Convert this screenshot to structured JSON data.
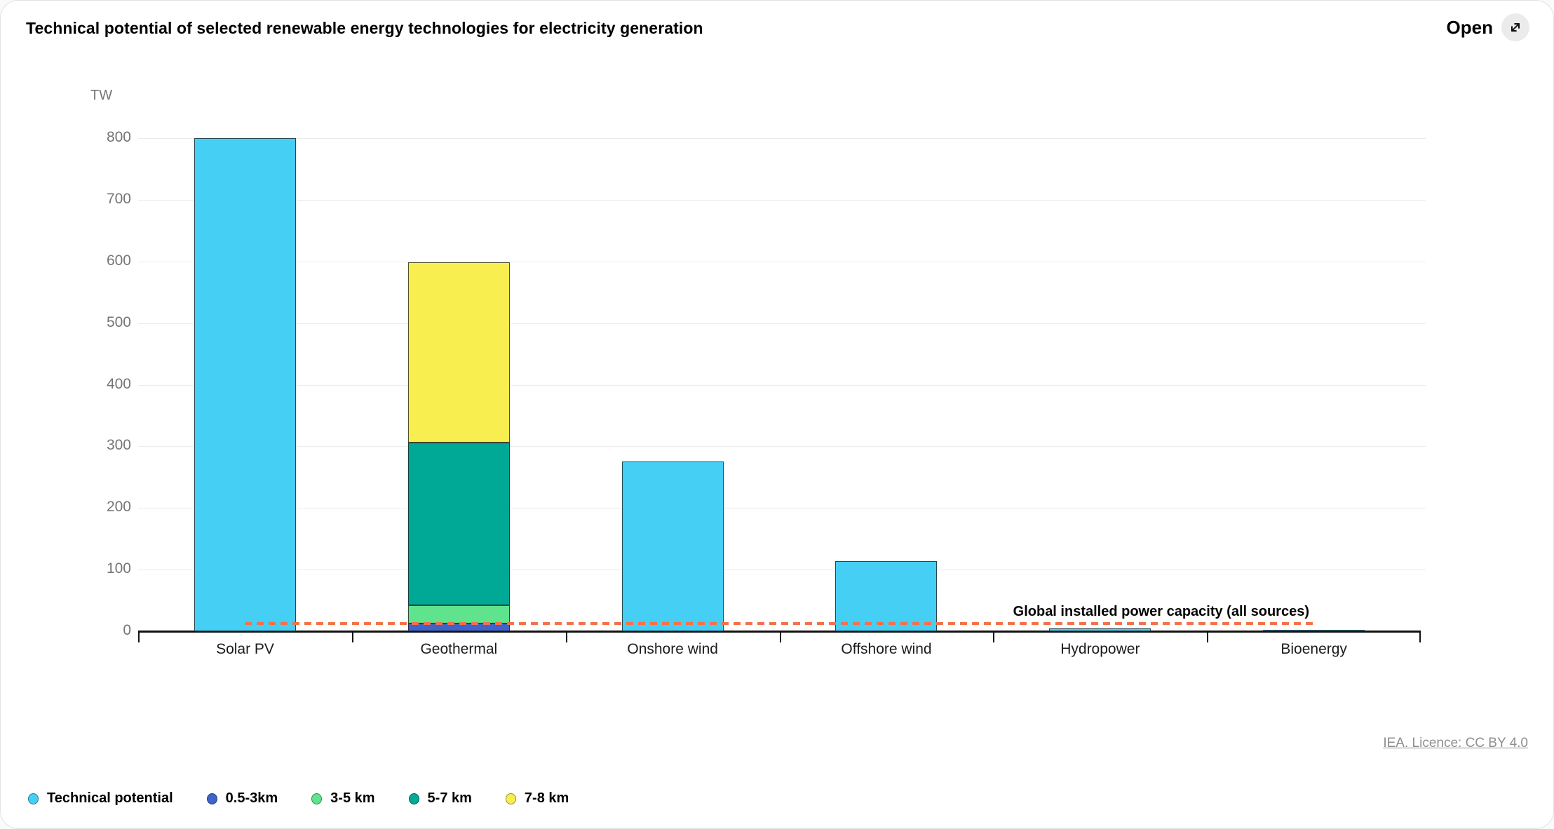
{
  "header": {
    "title": "Technical potential of selected renewable energy technologies for electricity generation",
    "open_label": "Open"
  },
  "footer": {
    "licence_text": "IEA. Licence: CC BY 4.0"
  },
  "chart_data": {
    "type": "bar",
    "title": "Technical potential of selected renewable energy technologies for electricity generation",
    "unit_label": "TW",
    "ylabel": "TW",
    "xlabel": "",
    "ylim": [
      0,
      800
    ],
    "y_ticks": [
      0,
      100,
      200,
      300,
      400,
      500,
      600,
      700,
      800
    ],
    "grid": true,
    "legend_position": "bottom",
    "categories": [
      "Solar PV",
      "Geothermal",
      "Onshore wind",
      "Offshore wind",
      "Hydropower",
      "Bioenergy"
    ],
    "series": [
      {
        "name": "Technical potential",
        "color": "#45CFF5",
        "values": [
          800,
          0,
          275,
          114,
          5,
          2
        ]
      },
      {
        "name": "0.5-3km",
        "color": "#3F63C8",
        "values": [
          0,
          12,
          0,
          0,
          0,
          0
        ]
      },
      {
        "name": "3-5 km",
        "color": "#5FE38C",
        "values": [
          0,
          30,
          0,
          0,
          0,
          0
        ]
      },
      {
        "name": "5-7 km",
        "color": "#00A896",
        "values": [
          0,
          264,
          0,
          0,
          0,
          0
        ]
      },
      {
        "name": "7-8 km",
        "color": "#F9EE4F",
        "values": [
          0,
          292,
          0,
          0,
          0,
          0
        ]
      }
    ],
    "reference_line": {
      "label": "Global installed power capacity (all sources)",
      "value": 12,
      "color": "#F4714B",
      "style": "dashed"
    }
  }
}
